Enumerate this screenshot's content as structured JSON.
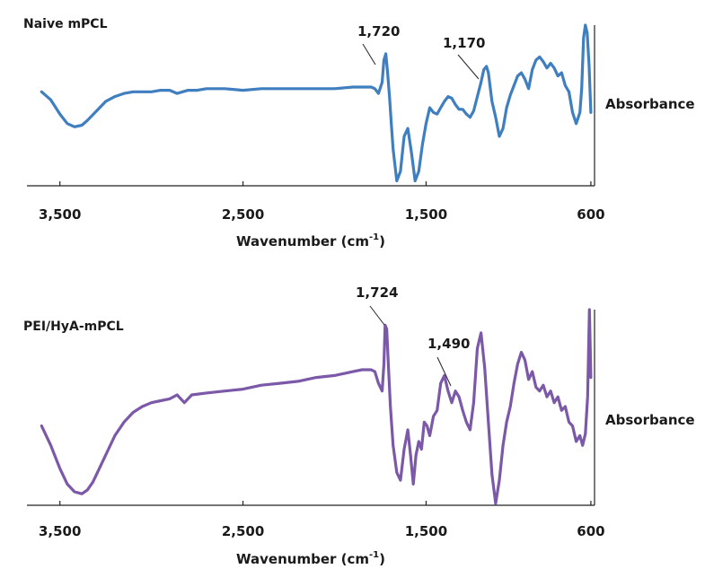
{
  "chart_data": [
    {
      "type": "line",
      "title": "Naive mPCL",
      "xlabel": "Wavenumber (cm",
      "xlabel_sup": "-1",
      "xlabel_close": ")",
      "ylabel": "Absorbance",
      "x_reversed": true,
      "xlim": [
        3680,
        580
      ],
      "ylim": [
        0,
        1
      ],
      "xticks": [
        3500,
        2500,
        1500,
        600
      ],
      "xtick_labels": [
        "3,500",
        "2,500",
        "1,500",
        "600"
      ],
      "grid": false,
      "color": "#3f7fbf",
      "series": [
        {
          "x": [
            3600,
            3550,
            3500,
            3460,
            3420,
            3380,
            3350,
            3300,
            3250,
            3200,
            3150,
            3100,
            3050,
            3000,
            2950,
            2900,
            2860,
            2800,
            2750,
            2700,
            2600,
            2500,
            2400,
            2300,
            2200,
            2100,
            2000,
            1900,
            1850,
            1800,
            1780,
            1760,
            1740,
            1730,
            1720,
            1710,
            1700,
            1690,
            1680,
            1660,
            1640,
            1620,
            1600,
            1580,
            1560,
            1540,
            1520,
            1500,
            1480,
            1460,
            1440,
            1420,
            1400,
            1380,
            1360,
            1340,
            1320,
            1300,
            1280,
            1260,
            1240,
            1220,
            1200,
            1185,
            1170,
            1160,
            1140,
            1120,
            1100,
            1080,
            1060,
            1040,
            1020,
            1000,
            980,
            960,
            940,
            920,
            900,
            880,
            860,
            840,
            820,
            800,
            780,
            760,
            740,
            720,
            700,
            680,
            660,
            650,
            640,
            630,
            620,
            610,
            600
          ],
          "y": [
            0.58,
            0.53,
            0.44,
            0.38,
            0.36,
            0.37,
            0.4,
            0.46,
            0.52,
            0.55,
            0.57,
            0.58,
            0.58,
            0.58,
            0.59,
            0.59,
            0.57,
            0.59,
            0.59,
            0.6,
            0.6,
            0.59,
            0.6,
            0.6,
            0.6,
            0.6,
            0.6,
            0.61,
            0.61,
            0.61,
            0.6,
            0.57,
            0.64,
            0.78,
            0.82,
            0.7,
            0.55,
            0.38,
            0.22,
            0.02,
            0.08,
            0.3,
            0.35,
            0.2,
            0.02,
            0.08,
            0.25,
            0.38,
            0.48,
            0.45,
            0.44,
            0.48,
            0.52,
            0.55,
            0.54,
            0.5,
            0.47,
            0.47,
            0.44,
            0.42,
            0.46,
            0.55,
            0.64,
            0.72,
            0.74,
            0.7,
            0.52,
            0.42,
            0.3,
            0.35,
            0.48,
            0.56,
            0.62,
            0.68,
            0.7,
            0.66,
            0.6,
            0.72,
            0.78,
            0.8,
            0.77,
            0.73,
            0.76,
            0.73,
            0.68,
            0.7,
            0.62,
            0.58,
            0.45,
            0.38,
            0.45,
            0.6,
            0.92,
            1.0,
            0.95,
            0.75,
            0.45
          ]
        }
      ],
      "annotations": [
        {
          "text": "1,720",
          "x": 1720,
          "y": 0.82
        },
        {
          "text": "1,170",
          "x": 1170,
          "y": 0.74
        }
      ]
    },
    {
      "type": "line",
      "title": "PEI/HyA-mPCL",
      "xlabel": "Wavenumber (cm",
      "xlabel_sup": "-1",
      "xlabel_close": ")",
      "ylabel": "Absorbance",
      "x_reversed": true,
      "xlim": [
        3680,
        580
      ],
      "ylim": [
        0,
        1
      ],
      "xticks": [
        3500,
        2500,
        1500,
        600
      ],
      "xtick_labels": [
        "3,500",
        "2,500",
        "1,500",
        "600"
      ],
      "grid": false,
      "color": "#7b59a8",
      "series": [
        {
          "x": [
            3600,
            3550,
            3500,
            3460,
            3420,
            3380,
            3350,
            3320,
            3300,
            3250,
            3200,
            3150,
            3100,
            3050,
            3000,
            2950,
            2900,
            2860,
            2820,
            2780,
            2700,
            2600,
            2500,
            2400,
            2300,
            2200,
            2100,
            2000,
            1900,
            1850,
            1800,
            1780,
            1760,
            1740,
            1730,
            1724,
            1715,
            1705,
            1695,
            1680,
            1660,
            1640,
            1620,
            1600,
            1585,
            1570,
            1555,
            1540,
            1525,
            1510,
            1495,
            1480,
            1460,
            1440,
            1420,
            1400,
            1380,
            1360,
            1340,
            1320,
            1300,
            1280,
            1260,
            1240,
            1220,
            1200,
            1180,
            1160,
            1140,
            1120,
            1100,
            1080,
            1060,
            1040,
            1020,
            1000,
            980,
            960,
            940,
            920,
            900,
            880,
            860,
            840,
            820,
            800,
            780,
            760,
            740,
            720,
            700,
            680,
            660,
            645,
            630,
            618,
            608,
            600
          ],
          "y": [
            0.4,
            0.3,
            0.18,
            0.1,
            0.06,
            0.05,
            0.07,
            0.11,
            0.15,
            0.25,
            0.35,
            0.42,
            0.47,
            0.5,
            0.52,
            0.53,
            0.54,
            0.56,
            0.52,
            0.56,
            0.57,
            0.58,
            0.59,
            0.61,
            0.62,
            0.63,
            0.65,
            0.66,
            0.68,
            0.69,
            0.69,
            0.68,
            0.62,
            0.58,
            0.72,
            0.92,
            0.9,
            0.7,
            0.5,
            0.3,
            0.16,
            0.12,
            0.28,
            0.38,
            0.25,
            0.1,
            0.25,
            0.32,
            0.28,
            0.42,
            0.4,
            0.35,
            0.45,
            0.48,
            0.62,
            0.66,
            0.58,
            0.52,
            0.58,
            0.55,
            0.48,
            0.42,
            0.38,
            0.52,
            0.8,
            0.88,
            0.7,
            0.42,
            0.15,
            0.0,
            0.12,
            0.3,
            0.42,
            0.5,
            0.62,
            0.72,
            0.78,
            0.74,
            0.64,
            0.68,
            0.6,
            0.58,
            0.61,
            0.55,
            0.58,
            0.52,
            0.55,
            0.48,
            0.5,
            0.42,
            0.4,
            0.32,
            0.35,
            0.3,
            0.36,
            0.55,
            1.0,
            0.65
          ]
        }
      ],
      "annotations": [
        {
          "text": "1,724",
          "x": 1724,
          "y": 0.92
        },
        {
          "text": "1,490",
          "x": 1490,
          "y": 0.48
        }
      ]
    }
  ]
}
